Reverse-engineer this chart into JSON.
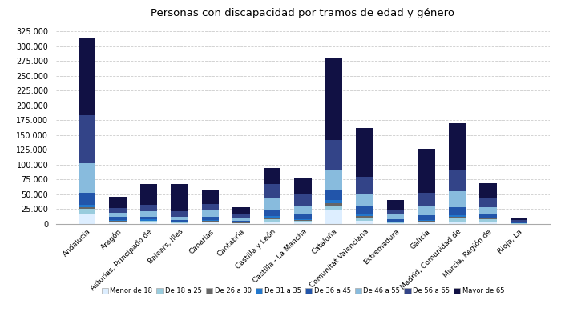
{
  "title": "Personas con discapacidad por tramos de edad y género",
  "categories": [
    "Andalucía",
    "Aragón",
    "Asturias, Principado de",
    "Balears, Illes",
    "Canarias",
    "Cantabria",
    "Castilla y León",
    "Castilla - La Mancha",
    "Cataluña",
    "Comunitat Valenciana",
    "Extremadura",
    "Galicia",
    "Madrid, Comunidad de",
    "Murcia, Región de",
    "Rioja, La"
  ],
  "age_groups": [
    "Menor de 18",
    "De 18 a 25",
    "De 26 a 30",
    "De 31 a 35",
    "De 36 a 45",
    "De 46 a 55",
    "De 56 a 65",
    "Mayor de 65"
  ],
  "colors": [
    "#ddeeff",
    "#99ccdd",
    "#666666",
    "#2277cc",
    "#2255aa",
    "#88bbdd",
    "#334488",
    "#111144"
  ],
  "data": {
    "Menor de 18": [
      17000,
      2500,
      3000,
      1500,
      2500,
      1200,
      4000,
      2500,
      23000,
      5000,
      1500,
      2500,
      4000,
      4000,
      400
    ],
    "De 18 a 25": [
      8000,
      2000,
      2000,
      1000,
      2000,
      800,
      4000,
      2500,
      8000,
      5000,
      1500,
      2000,
      5000,
      3500,
      400
    ],
    "De 26 a 30": [
      4000,
      1000,
      1000,
      600,
      1200,
      600,
      2000,
      1500,
      4000,
      3000,
      700,
      1200,
      2500,
      1500,
      200
    ],
    "De 31 a 35": [
      4000,
      1500,
      1500,
      800,
      1500,
      700,
      3000,
      2000,
      5000,
      3500,
      1000,
      1500,
      3500,
      2000,
      300
    ],
    "De 36 a 45": [
      20000,
      4500,
      4500,
      2500,
      5500,
      2500,
      10000,
      8000,
      18000,
      13000,
      4000,
      7000,
      13000,
      7000,
      1200
    ],
    "De 46 a 55": [
      50000,
      7000,
      9000,
      6000,
      10000,
      4500,
      20000,
      15000,
      32000,
      22000,
      7000,
      16000,
      27000,
      11000,
      2000
    ],
    "De 56 a 65": [
      80000,
      9000,
      12000,
      9000,
      11000,
      5500,
      25000,
      18000,
      52000,
      28000,
      9000,
      23000,
      37000,
      14000,
      2200
    ],
    "Mayor de 65": [
      130000,
      18000,
      35000,
      46000,
      24000,
      12000,
      27000,
      27000,
      138000,
      82000,
      16000,
      73000,
      78000,
      26000,
      4000
    ]
  },
  "ylim": [
    0,
    340000
  ],
  "yticks": [
    0,
    25000,
    50000,
    75000,
    100000,
    125000,
    150000,
    175000,
    200000,
    225000,
    250000,
    275000,
    300000,
    325000
  ],
  "background_color": "#ffffff",
  "grid_color": "#cccccc"
}
